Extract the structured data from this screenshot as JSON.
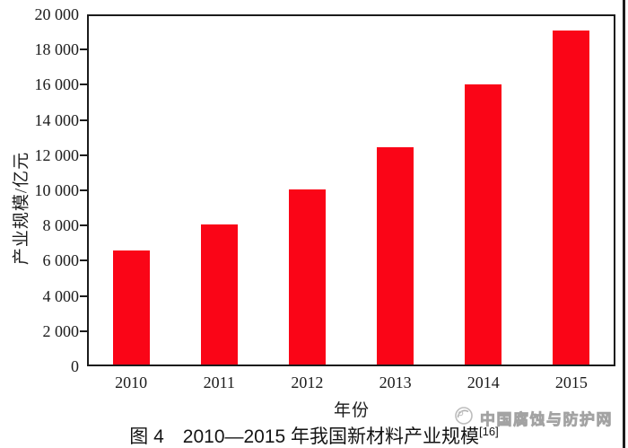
{
  "figure": {
    "caption": "图 4　2010—2015 年我国新材料产业规模",
    "caption_ref": "[16]",
    "watermark_text": "中国腐蚀与防护网"
  },
  "chart_data": {
    "type": "bar",
    "title": "图 4 2010—2015 年我国新材料产业规模",
    "categories": [
      "2010",
      "2011",
      "2012",
      "2013",
      "2014",
      "2015"
    ],
    "values": [
      6500,
      8000,
      10000,
      12400,
      16000,
      19100
    ],
    "xlabel": "年份",
    "ylabel": "产业规模/亿元",
    "ylim": [
      0,
      20000
    ],
    "ytick_step": 2000,
    "ytick_labels": [
      "0",
      "2 000",
      "4 000",
      "6 000",
      "8 000",
      "10 000",
      "12 000",
      "14 000",
      "16 000",
      "18 000",
      "20 000"
    ],
    "bar_color": "#fa0517",
    "axis_color": "#1b1b1b",
    "grid": false,
    "legend": false
  }
}
